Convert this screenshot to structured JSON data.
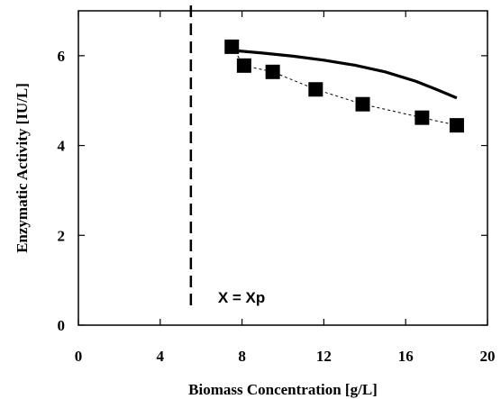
{
  "chart_data": {
    "type": "scatter",
    "xlabel": "Biomass Concentration [g/L]",
    "ylabel": "Enzymatic Activity [IU/L]",
    "xlim": [
      0,
      20
    ],
    "ylim": [
      0,
      7
    ],
    "xticks": [
      0,
      4,
      8,
      12,
      16,
      20
    ],
    "yticks": [
      0,
      2,
      4,
      6
    ],
    "grid": false,
    "series": [
      {
        "style": "markers-with-dotted-line",
        "marker": "filled-square",
        "x": [
          7.5,
          8.1,
          9.5,
          11.6,
          13.9,
          16.8,
          18.5
        ],
        "y": [
          6.2,
          5.78,
          5.64,
          5.25,
          4.92,
          4.62,
          4.45
        ]
      },
      {
        "style": "solid-line",
        "x": [
          7.5,
          9.0,
          10.5,
          12.0,
          13.5,
          15.0,
          16.5,
          17.5,
          18.5
        ],
        "y": [
          6.12,
          6.06,
          5.99,
          5.9,
          5.79,
          5.64,
          5.43,
          5.25,
          5.06
        ]
      }
    ],
    "annotations": [
      {
        "type": "vertical-dashed-line",
        "x": 5.5,
        "label": "X = Xp"
      }
    ]
  }
}
